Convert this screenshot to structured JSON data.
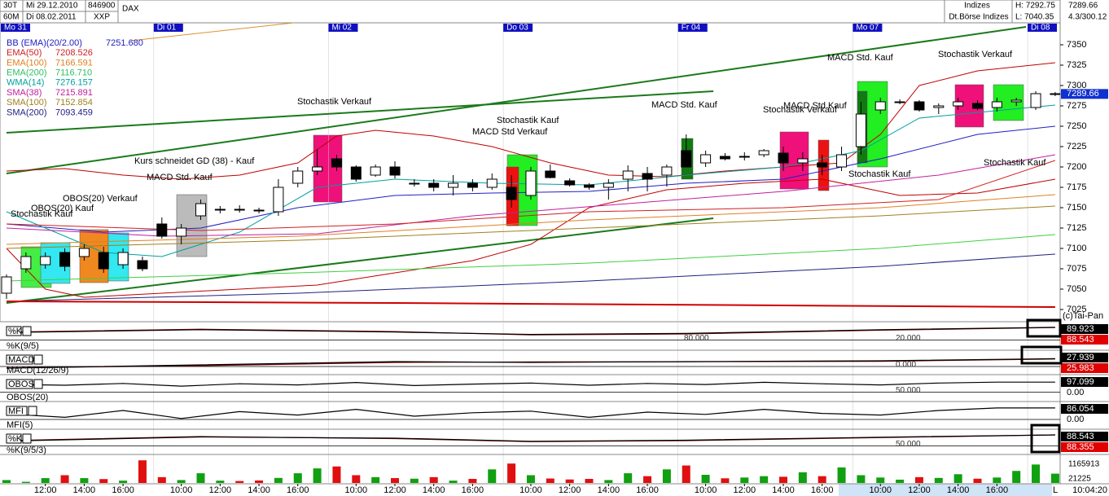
{
  "header": {
    "interval": "30T",
    "period": "60M",
    "from": "Mi 29.12.2010",
    "to": "Di 08.02.2011",
    "code": "846900",
    "name": "DAX",
    "exchange": "XXP",
    "group": "Indizes",
    "market": "Dt.Börse Indizes",
    "high": "H: 7292.75",
    "low": "L: 7040.35",
    "last": "7289.66",
    "info": "4.3/300.12",
    "copyright": "(c)Tai-Pan",
    "clock": "10:04:20",
    "scroll": "L"
  },
  "chart_data": {
    "type": "candlestick",
    "ylim": [
      7010,
      7377
    ],
    "yticks": [
      7350,
      7325,
      7300,
      7275,
      7250,
      7225,
      7200,
      7175,
      7150,
      7125,
      7100,
      7075,
      7050,
      7025
    ],
    "last_price": 7289.66,
    "day_labels": [
      "Mo 31",
      "Di 01",
      "Mi 02",
      "Do 03",
      "Fr 04",
      "Mo 07",
      "Di 08"
    ],
    "day_starts": [
      0,
      8,
      17,
      26,
      35,
      44,
      53
    ],
    "hour_ticks": [
      {
        "value": 2,
        "label": "12:00"
      },
      {
        "value": 4,
        "label": "14:00"
      },
      {
        "value": 6,
        "label": "16:00"
      },
      {
        "value": 9,
        "label": "10:00"
      },
      {
        "value": 11,
        "label": "12:00"
      },
      {
        "value": 13,
        "label": "14:00"
      },
      {
        "value": 15,
        "label": "16:00"
      },
      {
        "value": 18,
        "label": "10:00"
      },
      {
        "value": 20,
        "label": "12:00"
      },
      {
        "value": 22,
        "label": "14:00"
      },
      {
        "value": 24,
        "label": "16:00"
      },
      {
        "value": 27,
        "label": "10:00"
      },
      {
        "value": 29,
        "label": "12:00"
      },
      {
        "value": 31,
        "label": "14:00"
      },
      {
        "value": 33,
        "label": "16:00"
      },
      {
        "value": 36,
        "label": "10:00"
      },
      {
        "value": 38,
        "label": "12:00"
      },
      {
        "value": 40,
        "label": "14:00"
      },
      {
        "value": 42,
        "label": "16:00"
      },
      {
        "value": 45,
        "label": "10:00"
      },
      {
        "value": 47,
        "label": "12:00"
      },
      {
        "value": 49,
        "label": "14:00"
      },
      {
        "value": 51,
        "label": "16:00"
      }
    ],
    "open": [
      7045,
      7075,
      7080,
      7095,
      7090,
      7095,
      7080,
      7085,
      7130,
      7115,
      7140,
      7147,
      7148,
      7147,
      7145,
      7180,
      7195,
      7210,
      7200,
      7190,
      7200,
      7180,
      7180,
      7175,
      7180,
      7175,
      7175,
      7165,
      7195,
      7183,
      7178,
      7175,
      7185,
      7192,
      7190,
      7220,
      7205,
      7213,
      7213,
      7215,
      7217,
      7205,
      7205,
      7200,
      7225,
      7270,
      7280,
      7280,
      7273,
      7275,
      7278,
      7273,
      7280,
      7273,
      7290
    ],
    "high": [
      7068,
      7095,
      7095,
      7100,
      7105,
      7102,
      7100,
      7090,
      7138,
      7130,
      7160,
      7152,
      7153,
      7150,
      7185,
      7200,
      7222,
      7215,
      7202,
      7203,
      7207,
      7185,
      7185,
      7190,
      7185,
      7192,
      7190,
      7200,
      7203,
      7186,
      7180,
      7185,
      7202,
      7200,
      7203,
      7240,
      7220,
      7217,
      7218,
      7222,
      7225,
      7218,
      7215,
      7225,
      7280,
      7285,
      7283,
      7282,
      7278,
      7285,
      7282,
      7285,
      7285,
      7293,
      7292
    ],
    "low": [
      7038,
      7070,
      7075,
      7072,
      7085,
      7070,
      7075,
      7072,
      7112,
      7105,
      7135,
      7143,
      7144,
      7143,
      7140,
      7175,
      7190,
      7195,
      7182,
      7188,
      7186,
      7176,
      7170,
      7165,
      7170,
      7172,
      7150,
      7160,
      7186,
      7176,
      7172,
      7160,
      7170,
      7170,
      7176,
      7200,
      7200,
      7208,
      7208,
      7212,
      7195,
      7195,
      7190,
      7195,
      7215,
      7265,
      7277,
      7268,
      7265,
      7270,
      7270,
      7268,
      7275,
      7270,
      7287
    ],
    "close": [
      7065,
      7090,
      7090,
      7078,
      7100,
      7075,
      7095,
      7075,
      7115,
      7125,
      7155,
      7148,
      7147,
      7146,
      7175,
      7195,
      7200,
      7200,
      7185,
      7200,
      7190,
      7180,
      7175,
      7180,
      7175,
      7185,
      7160,
      7195,
      7187,
      7178,
      7175,
      7180,
      7195,
      7185,
      7200,
      7200,
      7215,
      7210,
      7213,
      7220,
      7205,
      7210,
      7200,
      7215,
      7265,
      7280,
      7280,
      7270,
      7275,
      7280,
      7272,
      7280,
      7282,
      7290,
      7290
    ],
    "lines": [
      {
        "color": "#1a7a1a",
        "width": 2,
        "x": [
          0,
          52.5
        ],
        "values": [
          7192,
          7372
        ]
      },
      {
        "color": "#1a7a1a",
        "width": 2,
        "x": [
          0,
          36.4
        ],
        "values": [
          7242,
          7293
        ]
      },
      {
        "color": "#1a7a1a",
        "width": 2,
        "x": [
          0,
          36.4
        ],
        "values": [
          7033,
          7137
        ]
      },
      {
        "color": "#e09030",
        "width": 1,
        "x": [
          6.4,
          14.8
        ],
        "values": [
          7355,
          7377
        ]
      },
      {
        "color": "#c00000",
        "width": 1,
        "x": [
          0,
          3,
          6,
          9,
          12,
          15,
          17,
          19,
          22,
          25,
          28,
          31,
          34,
          37,
          40,
          43,
          45,
          47,
          50,
          54
        ],
        "values": [
          7195,
          7198,
          7190,
          7185,
          7190,
          7205,
          7238,
          7245,
          7238,
          7225,
          7205,
          7190,
          7188,
          7195,
          7200,
          7205,
          7240,
          7300,
          7318,
          7328
        ]
      },
      {
        "color": "#c00000",
        "width": 1,
        "x": [
          0,
          2,
          4,
          8,
          12,
          16,
          20,
          24,
          27,
          30,
          34,
          38,
          42,
          44,
          46,
          50,
          54
        ],
        "values": [
          7100,
          7050,
          7040,
          7045,
          7050,
          7055,
          7070,
          7085,
          7105,
          7150,
          7172,
          7180,
          7185,
          7175,
          7165,
          7168,
          7185
        ]
      },
      {
        "color": "#2020c0",
        "width": 1,
        "x": [
          0,
          5,
          10,
          15,
          20,
          25,
          30,
          35,
          40,
          45,
          50,
          54
        ],
        "values": [
          7130,
          7120,
          7125,
          7150,
          7165,
          7168,
          7170,
          7180,
          7185,
          7210,
          7240,
          7250
        ]
      },
      {
        "color": "#00a0a0",
        "width": 1,
        "x": [
          0,
          5,
          8,
          12,
          16,
          20,
          25,
          30,
          35,
          40,
          44,
          47,
          54
        ],
        "values": [
          7145,
          7095,
          7090,
          7120,
          7175,
          7185,
          7180,
          7178,
          7190,
          7200,
          7220,
          7260,
          7276
        ]
      },
      {
        "color": "#c020a0",
        "width": 1,
        "x": [
          0,
          8,
          16,
          24,
          32,
          40,
          48,
          54
        ],
        "values": [
          7125,
          7115,
          7118,
          7140,
          7155,
          7170,
          7190,
          7215
        ]
      },
      {
        "color": "#d02020",
        "width": 1,
        "x": [
          0,
          10,
          20,
          30,
          40,
          48,
          54
        ],
        "values": [
          7130,
          7122,
          7130,
          7145,
          7150,
          7160,
          7208
        ]
      },
      {
        "color": "#e08020",
        "width": 1,
        "x": [
          0,
          15,
          30,
          45,
          54
        ],
        "values": [
          7105,
          7115,
          7135,
          7150,
          7166
        ]
      },
      {
        "color": "#a08020",
        "width": 1,
        "x": [
          0,
          15,
          30,
          45,
          54
        ],
        "values": [
          7100,
          7110,
          7125,
          7140,
          7152
        ]
      },
      {
        "color": "#40d040",
        "width": 1,
        "x": [
          0,
          15,
          30,
          45,
          54
        ],
        "values": [
          7060,
          7070,
          7082,
          7100,
          7117
        ]
      },
      {
        "color": "#202080",
        "width": 1,
        "x": [
          0,
          15,
          30,
          45,
          54
        ],
        "values": [
          7035,
          7045,
          7060,
          7078,
          7093
        ]
      },
      {
        "color": "#d00000",
        "width": 2,
        "x": [
          0,
          20,
          40,
          54
        ],
        "values": [
          7035,
          7033,
          7030,
          7028
        ]
      }
    ],
    "legend": [
      {
        "label": "BB (EMA)(20/2.00)",
        "value": "7251.680",
        "color": "#2020c0"
      },
      {
        "label": "EMA(50)",
        "value": "7208.526",
        "color": "#d02020"
      },
      {
        "label": "EMA(100)",
        "value": "7166.591",
        "color": "#e08020"
      },
      {
        "label": "EMA(200)",
        "value": "7116.710",
        "color": "#30c060"
      },
      {
        "label": "WMA(14)",
        "value": "7276.157",
        "color": "#00a0a0"
      },
      {
        "label": "SMA(38)",
        "value": "7215.891",
        "color": "#c020a0"
      },
      {
        "label": "SMA(100)",
        "value": "7152.854",
        "color": "#a08020"
      },
      {
        "label": "SMA(200)",
        "value": "7093.459",
        "color": "#202080"
      }
    ],
    "annotations": [
      "Stochastik Kauf",
      "OBOS(20) Kauf",
      "OBOS(20) Verkauf",
      "MACD Std. Kauf",
      "Kurs schneidet GD (38) - Kauf",
      "Stochastik Verkauf",
      "Stochastik Kauf",
      "MACD Std Verkauf",
      "MACD Std. Kauf",
      "Stochastik Verkauf",
      "MACD Std Kauf",
      "Stochastik Kauf",
      "MACD Std. Kauf",
      "Stochastik Verkauf",
      "Stochastik Kauf"
    ],
    "panels": [
      {
        "label": "%K",
        "sublabel": "%K(9/5)",
        "readouts": [
          "89.923",
          "88.543"
        ],
        "readout_colors": [
          "#000000",
          "#e00000"
        ],
        "levels": [
          "80.000",
          "20.000"
        ],
        "ylim": [
          0,
          100
        ],
        "lines": [
          {
            "color": "#800000",
            "x": [
              0,
              10,
              20,
              27,
              35,
              45,
              54
            ],
            "values": [
              70,
              82,
              72,
              58,
              62,
              78,
              89
            ]
          },
          {
            "color": "#000000",
            "x": [
              0,
              10,
              20,
              27,
              35,
              45,
              54
            ],
            "values": [
              68,
              80,
              70,
              60,
              64,
              80,
              90
            ]
          }
        ]
      },
      {
        "label": "MACD",
        "sublabel": "MACD(12/26/9)",
        "readouts": [
          "27.939",
          "25.983"
        ],
        "readout_colors": [
          "#000000",
          "#e00000"
        ],
        "levels": [
          "0.000"
        ],
        "ylim": [
          -60,
          60
        ],
        "lines": [
          {
            "color": "#800000",
            "x": [
              0,
              10,
              20,
              27,
              35,
              45,
              54
            ],
            "values": [
              -28,
              -15,
              5,
              8,
              9,
              12,
              26
            ]
          },
          {
            "color": "#000000",
            "x": [
              0,
              10,
              20,
              27,
              35,
              45,
              54
            ],
            "values": [
              -30,
              -10,
              10,
              5,
              10,
              15,
              28
            ]
          }
        ]
      },
      {
        "label": "OBOS",
        "sublabel": "OBOS(20)",
        "readouts": [
          "97.099",
          "0.00"
        ],
        "readout_colors": [
          "#000000",
          "#ffffff"
        ],
        "levels": [
          "50.000"
        ],
        "ylim": [
          0,
          120
        ],
        "lines": [
          {
            "color": "#000000",
            "x": [
              0,
              3,
              6,
              9,
              12,
              15,
              18,
              21,
              24,
              27,
              30,
              33,
              36,
              39,
              42,
              45,
              48,
              51,
              54
            ],
            "values": [
              85,
              80,
              90,
              75,
              88,
              82,
              95,
              78,
              86,
              92,
              80,
              90,
              84,
              96,
              88,
              82,
              92,
              97,
              97
            ]
          }
        ]
      },
      {
        "label": "MFI",
        "sublabel": "MFI(5)",
        "readouts": [
          "86.054",
          "0.00"
        ],
        "readout_colors": [
          "#000000",
          "#ffffff"
        ],
        "levels": [],
        "ylim": [
          0,
          100
        ],
        "lines": [
          {
            "color": "#000000",
            "x": [
              0,
              3,
              6,
              9,
              12,
              15,
              18,
              21,
              24,
              27,
              30,
              33,
              36,
              39,
              42,
              45,
              48,
              51,
              54
            ],
            "values": [
              60,
              45,
              75,
              40,
              70,
              55,
              80,
              50,
              65,
              72,
              45,
              68,
              58,
              80,
              62,
              55,
              75,
              86,
              86
            ]
          }
        ]
      },
      {
        "label": "%K",
        "sublabel": "%K(9/5/3)",
        "readouts": [
          "88.543",
          "88.355"
        ],
        "readout_colors": [
          "#000000",
          "#e00000"
        ],
        "levels": [
          "50.000"
        ],
        "ylim": [
          0,
          100
        ],
        "lines": [
          {
            "color": "#800000",
            "x": [
              0,
              10,
              20,
              27,
              35,
              45,
              54
            ],
            "values": [
              60,
              80,
              70,
              55,
              60,
              75,
              88
            ]
          },
          {
            "color": "#000000",
            "x": [
              0,
              10,
              20,
              27,
              35,
              45,
              54
            ],
            "values": [
              58,
              78,
              72,
              57,
              62,
              77,
              88
            ]
          }
        ]
      }
    ],
    "volume": {
      "ylim": [
        0,
        1300000
      ],
      "yticks": [
        1165913,
        21225
      ],
      "up_color": "#10a010",
      "down_color": "#e01010",
      "values": [
        150000,
        60000,
        250000,
        400000,
        250000,
        200000,
        120000,
        1165913,
        300000,
        150000,
        500000,
        120000,
        100000,
        130000,
        260000,
        500000,
        750000,
        850000,
        400000,
        300000,
        250000,
        220000,
        300000,
        120000,
        210000,
        700000,
        1000000,
        400000,
        230000,
        180000,
        210000,
        150000,
        500000,
        350000,
        700000,
        900000,
        420000,
        240000,
        280000,
        350000,
        320000,
        550000,
        350000,
        800000,
        400000,
        280000,
        170000,
        300000,
        260000,
        450000,
        220000,
        280000,
        620000,
        950000,
        480000
      ]
    }
  }
}
